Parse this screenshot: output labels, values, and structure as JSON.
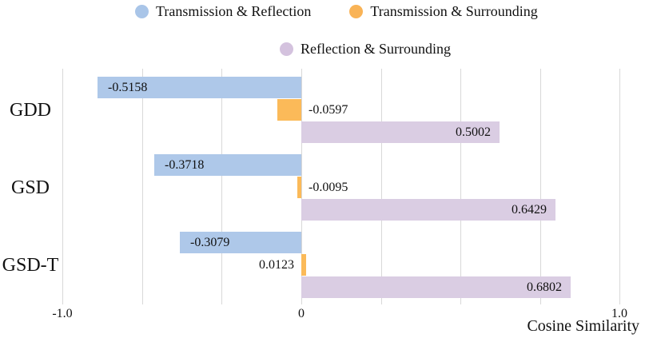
{
  "legend": {
    "items": [
      {
        "label": "Transmission & Reflection",
        "marker_color": "#a9c5e8",
        "row": 1
      },
      {
        "label": "Transmission & Surrounding",
        "marker_color": "#f9b356",
        "row": 1
      },
      {
        "label": "Reflection & Surrounding",
        "marker_color": "#d4c2de",
        "row": 2
      }
    ]
  },
  "chart_data": {
    "type": "bar",
    "orientation": "horizontal",
    "title": "",
    "categories": [
      "GDD",
      "GSD",
      "GSD-T"
    ],
    "series": [
      {
        "name": "Transmission & Reflection",
        "color": "#aec8e9",
        "values": [
          -0.5158,
          -0.3718,
          -0.3079
        ]
      },
      {
        "name": "Transmission & Surrounding",
        "color": "#fbba59",
        "values": [
          -0.0597,
          -0.0095,
          0.0123
        ]
      },
      {
        "name": "Reflection & Surrounding",
        "color": "#dacde3",
        "values": [
          0.5002,
          0.6429,
          0.6802
        ]
      }
    ],
    "value_label_decimals": 4,
    "xlabel": "Cosine Similarity",
    "xticks": [
      {
        "value": -1.0,
        "label": "-1.0"
      },
      {
        "value": 0,
        "label": "0"
      },
      {
        "value": 1.0,
        "label": "1.0"
      }
    ],
    "xlim": [
      -1.05,
      1.05
    ],
    "grid": true,
    "legend_position": "top",
    "colors": {
      "gridline": "#d8d8d8",
      "text": "#111111",
      "background": "#ffffff"
    }
  }
}
